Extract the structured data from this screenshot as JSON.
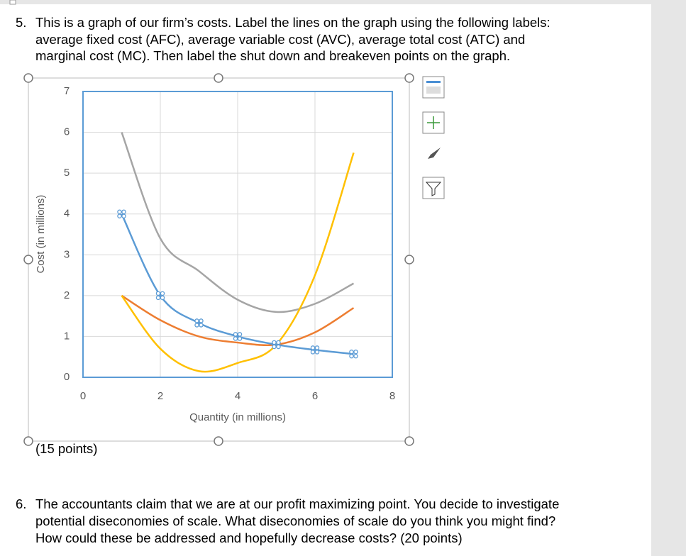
{
  "question_5": {
    "number": "5.",
    "lines": [
      "This is a graph of our firm’s costs. Label the lines on the graph using the following labels:",
      "average fixed cost (AFC), average variable cost (AVC), average total cost (ATC) and",
      "marginal cost (MC). Then label the shut down and breakeven points on the graph."
    ],
    "points": "(15 points)"
  },
  "chart_data": {
    "type": "line",
    "x_label": "Quantity (in millions)",
    "y_label": "Cost (in millions)",
    "x": [
      1,
      2,
      3,
      4,
      5,
      6,
      7
    ],
    "series": [
      {
        "color": "#a5a5a5",
        "values": [
          6.0,
          3.4,
          2.6,
          1.9,
          1.6,
          1.8,
          2.3
        ]
      },
      {
        "color": "#ed7d31",
        "values": [
          2.0,
          1.4,
          1.0,
          0.85,
          0.8,
          1.1,
          1.7
        ]
      },
      {
        "color": "#ffc000",
        "values": [
          2.0,
          0.7,
          0.15,
          0.35,
          0.8,
          2.5,
          5.5
        ]
      },
      {
        "color": "#5b9bd5",
        "values": [
          4.0,
          2.0,
          1.33,
          1.0,
          0.8,
          0.67,
          0.57
        ],
        "markers": true
      }
    ],
    "xlim": [
      0,
      8
    ],
    "xticks": [
      0,
      2,
      4,
      6,
      8
    ],
    "ylim": [
      0,
      7
    ],
    "yticks": [
      0,
      1,
      2,
      3,
      4,
      5,
      6,
      7
    ],
    "grid": true
  },
  "question_6": {
    "number": "6.",
    "lines": [
      "The accountants claim that we are at our profit maximizing point. You decide to investigate",
      "potential diseconomies of scale. What diseconomies of scale do you think you might find?",
      "How could these be addressed and hopefully decrease costs? (20 points)"
    ]
  }
}
